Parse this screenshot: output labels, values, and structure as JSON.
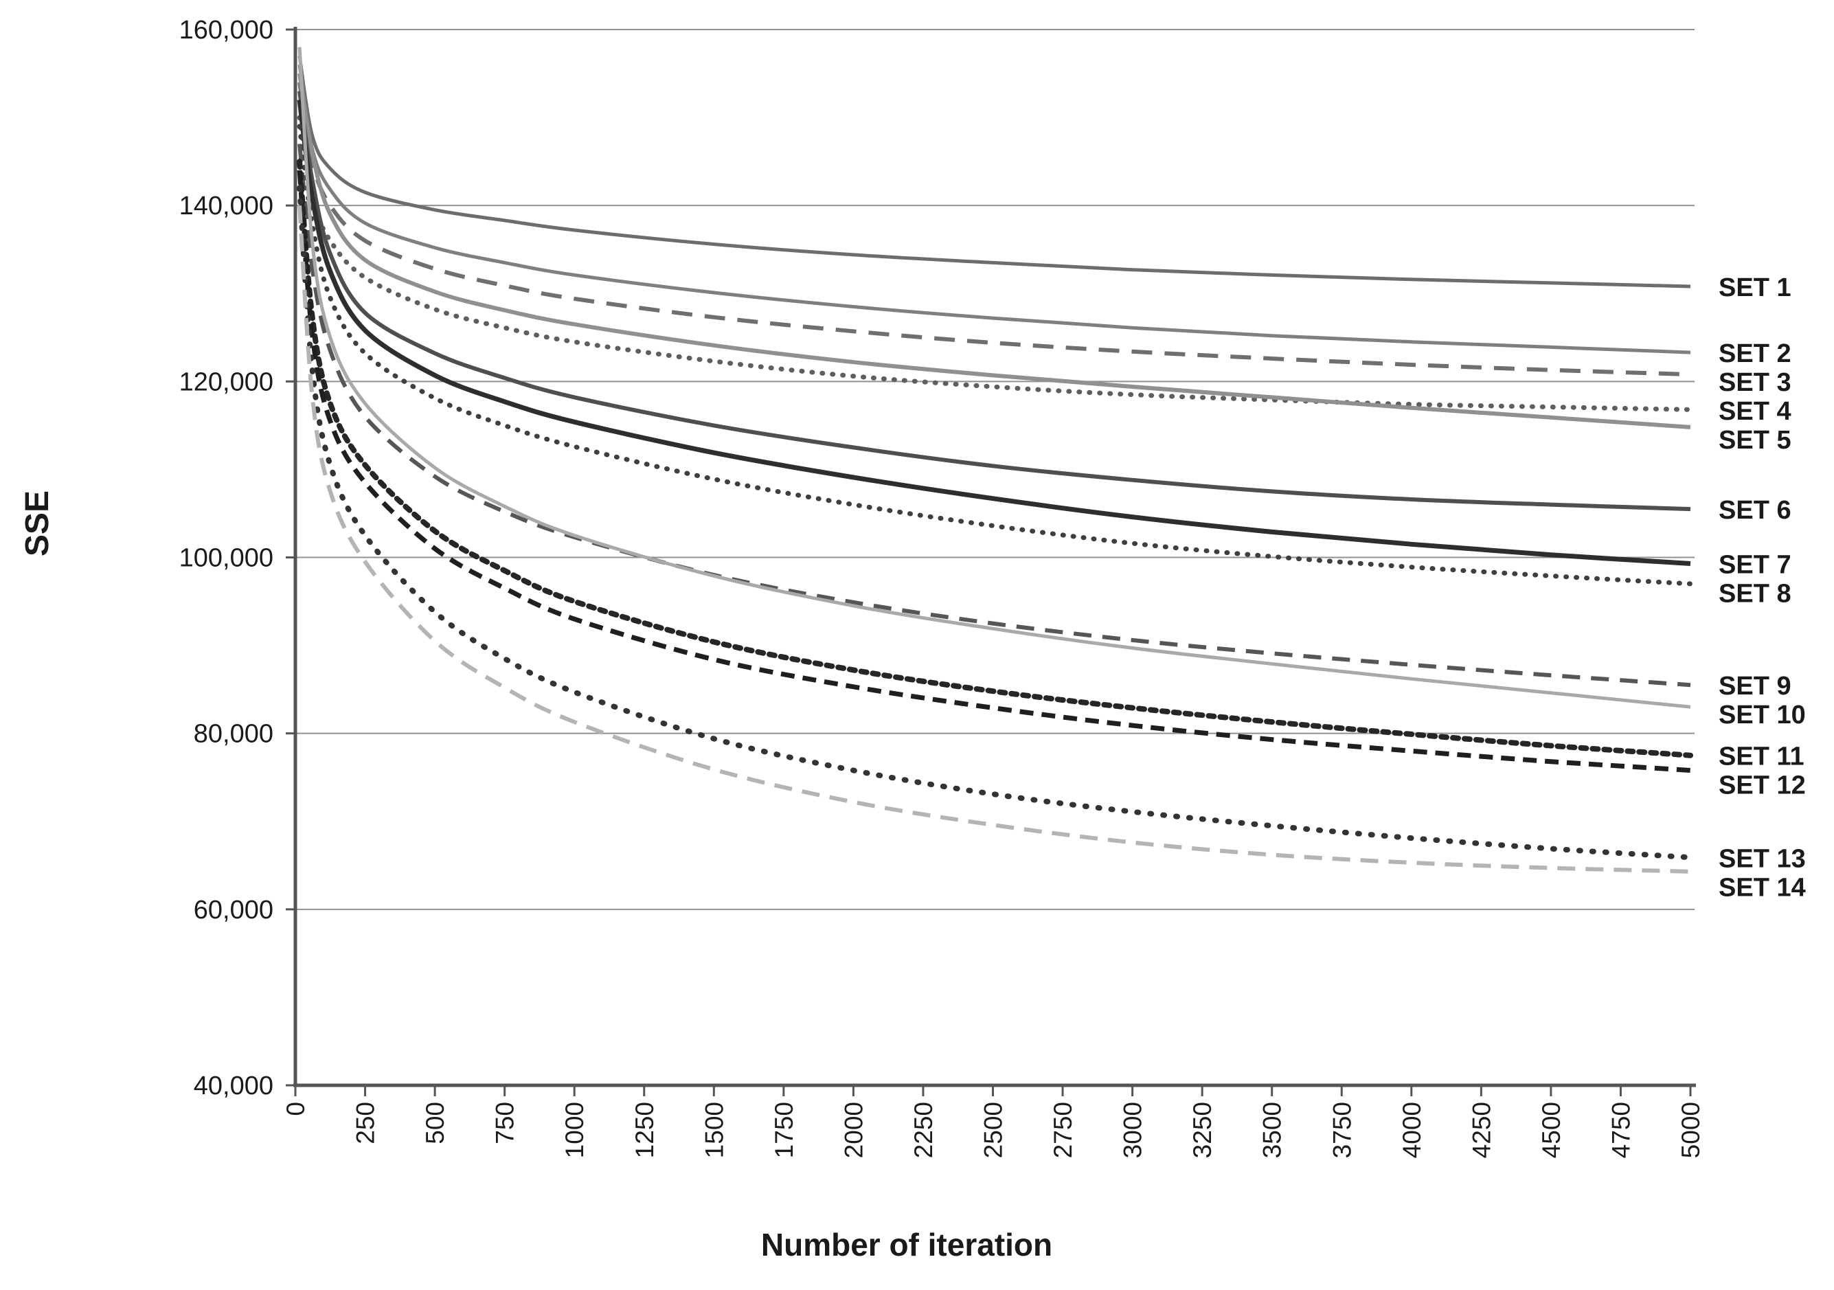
{
  "chart_data": {
    "type": "line",
    "title": "",
    "xlabel": "Number of iteration",
    "ylabel": "SSE",
    "xlim": [
      0,
      5000
    ],
    "ylim": [
      40000,
      160000
    ],
    "grid": "horizontal",
    "legend_position": "right-of-line-ends",
    "x_ticks": [
      0,
      250,
      500,
      750,
      1000,
      1250,
      1500,
      1750,
      2000,
      2250,
      2500,
      2750,
      3000,
      3250,
      3500,
      3750,
      4000,
      4250,
      4500,
      4750,
      5000
    ],
    "x_tick_labels": [
      "0",
      "250",
      "500",
      "750",
      "1000",
      "1250",
      "1500",
      "1750",
      "2000",
      "2250",
      "2500",
      "2750",
      "3000",
      "3250",
      "3500",
      "3750",
      "4000",
      "4250",
      "4500",
      "4750",
      "5000"
    ],
    "y_ticks": [
      160000,
      140000,
      120000,
      100000,
      80000,
      60000,
      40000
    ],
    "y_tick_labels": [
      "160,000",
      "140,000",
      "120,000",
      "100,000",
      "80,000",
      "60,000",
      "40,000"
    ],
    "x": [
      15,
      60,
      125,
      250,
      500,
      750,
      1000,
      1500,
      2000,
      2500,
      3000,
      3500,
      4000,
      4500,
      5000
    ],
    "series": [
      {
        "name": "SET 1",
        "style": "solid",
        "color": "#6d6d6d",
        "width": 5,
        "dash": "",
        "values": [
          157000,
          148000,
          144200,
          141500,
          139500,
          138300,
          137200,
          135600,
          134400,
          133500,
          132700,
          132100,
          131600,
          131200,
          130800
        ]
      },
      {
        "name": "SET 2",
        "style": "solid",
        "color": "#7f7f7f",
        "width": 5,
        "dash": "",
        "values": [
          156000,
          146500,
          141800,
          138000,
          135200,
          133500,
          132100,
          130100,
          128500,
          127200,
          126100,
          125200,
          124500,
          123900,
          123300
        ]
      },
      {
        "name": "SET 3",
        "style": "dashed",
        "color": "#6f6f6f",
        "width": 6,
        "dash": "30 18",
        "values": [
          154000,
          145000,
          140000,
          136000,
          132800,
          130900,
          129400,
          127300,
          125700,
          124400,
          123400,
          122600,
          121900,
          121300,
          120800
        ]
      },
      {
        "name": "SET 4",
        "style": "dotted",
        "color": "#5e5e5e",
        "width": 7,
        "dash": "1 14",
        "values": [
          150000,
          141000,
          136000,
          131800,
          128200,
          126100,
          124500,
          122300,
          120600,
          119400,
          118500,
          117900,
          117400,
          117100,
          116800
        ]
      },
      {
        "name": "SET 5",
        "style": "solid",
        "color": "#909090",
        "width": 6,
        "dash": "",
        "values": [
          155000,
          146000,
          139000,
          133800,
          130200,
          128100,
          126500,
          124100,
          122200,
          120700,
          119400,
          118200,
          117000,
          115900,
          114800
        ]
      },
      {
        "name": "SET 6",
        "style": "solid",
        "color": "#4f4f4f",
        "width": 6,
        "dash": "",
        "values": [
          153000,
          143000,
          134500,
          127800,
          123200,
          120400,
          118200,
          115000,
          112500,
          110400,
          108800,
          107500,
          106600,
          106000,
          105500
        ]
      },
      {
        "name": "SET 7",
        "style": "solid",
        "color": "#2e2e2e",
        "width": 7,
        "dash": "",
        "values": [
          152000,
          141000,
          132500,
          125800,
          120700,
          117700,
          115400,
          111900,
          109100,
          106700,
          104600,
          102900,
          101500,
          100300,
          99300
        ]
      },
      {
        "name": "SET 8",
        "style": "dotted",
        "color": "#3f3f3f",
        "width": 7,
        "dash": "1 14",
        "values": [
          149000,
          138000,
          129500,
          123200,
          118100,
          115000,
          112600,
          108900,
          106000,
          103600,
          101600,
          100100,
          98900,
          97900,
          97000
        ]
      },
      {
        "name": "SET 9",
        "style": "dashed",
        "color": "#565656",
        "width": 6,
        "dash": "26 16",
        "values": [
          147000,
          133000,
          123500,
          116000,
          109200,
          105200,
          102300,
          98000,
          94900,
          92500,
          90600,
          89100,
          87800,
          86600,
          85500
        ]
      },
      {
        "name": "SET 10",
        "style": "solid",
        "color": "#a9a9a9",
        "width": 5,
        "dash": "",
        "values": [
          158000,
          136000,
          125000,
          117500,
          110200,
          105800,
          102500,
          97900,
          94500,
          91900,
          89700,
          87900,
          86200,
          84600,
          83000
        ]
      },
      {
        "name": "SET 11",
        "style": "dotted",
        "color": "#262626",
        "width": 8,
        "dash": "8 9",
        "values": [
          145000,
          127500,
          117500,
          110500,
          103000,
          98500,
          95000,
          90400,
          87200,
          84800,
          82900,
          81300,
          79900,
          78600,
          77500
        ]
      },
      {
        "name": "SET 12",
        "style": "dashed",
        "color": "#1f1f1f",
        "width": 7,
        "dash": "20 12",
        "values": [
          144000,
          125500,
          115500,
          108500,
          101000,
          96500,
          93000,
          88400,
          85300,
          82900,
          80900,
          79300,
          78000,
          76800,
          75800
        ]
      },
      {
        "name": "SET 13",
        "style": "dotted",
        "color": "#333333",
        "width": 8,
        "dash": "2 17",
        "values": [
          142000,
          121500,
          110500,
          102500,
          93800,
          88500,
          84700,
          79400,
          75800,
          73100,
          71100,
          69500,
          68100,
          66900,
          65900
        ]
      },
      {
        "name": "SET 14",
        "style": "dashed",
        "color": "#b4b4b4",
        "width": 6,
        "dash": "26 15",
        "values": [
          140000,
          118500,
          107500,
          99500,
          90500,
          85200,
          81300,
          75900,
          72200,
          69600,
          67600,
          66200,
          65300,
          64700,
          64300
        ]
      }
    ],
    "colors": {
      "background": "#ffffff",
      "gridline": "#909090",
      "axis": "#555555",
      "text": "#1a1a1a"
    }
  }
}
